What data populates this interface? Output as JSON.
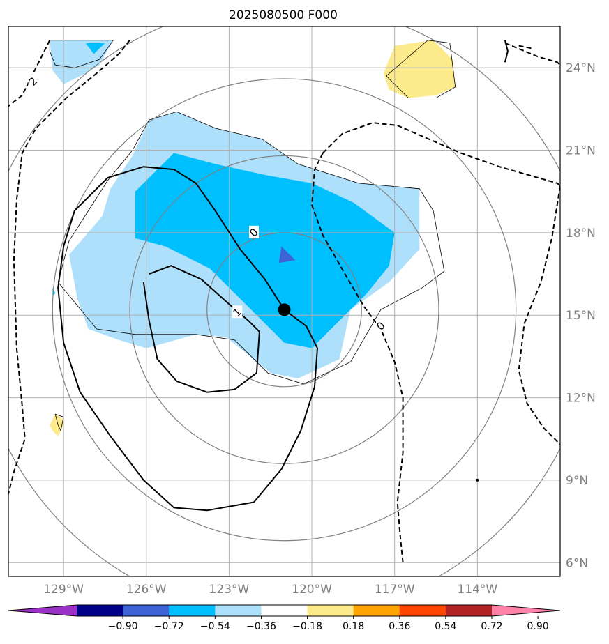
{
  "chart_data": {
    "type": "contour",
    "title": "2025080500 F000",
    "xlabel": "",
    "ylabel": "",
    "xlim": [
      -131,
      -111
    ],
    "ylim": [
      5.5,
      25.5
    ],
    "grid": true,
    "x_ticks": [
      {
        "value": -129,
        "label": "129°W"
      },
      {
        "value": -126,
        "label": "126°W"
      },
      {
        "value": -123,
        "label": "123°W"
      },
      {
        "value": -120,
        "label": "120°W"
      },
      {
        "value": -117,
        "label": "117°W"
      },
      {
        "value": -114,
        "label": "114°W"
      }
    ],
    "y_ticks": [
      {
        "value": 6,
        "label": "6°N"
      },
      {
        "value": 9,
        "label": "9°N"
      },
      {
        "value": 12,
        "label": "12°N"
      },
      {
        "value": 15,
        "label": "15°N"
      },
      {
        "value": 18,
        "label": "18°N"
      },
      {
        "value": 21,
        "label": "21°N"
      },
      {
        "value": 24,
        "label": "24°N"
      }
    ],
    "center": {
      "lon": -121.0,
      "lat": 15.2
    },
    "range_rings_deg": [
      2.8,
      5.6,
      8.4,
      11.2
    ],
    "fill_regions": [
      {
        "level": -0.27,
        "color": "#aee0fb",
        "points": [
          [
            -125.9,
            22.1
          ],
          [
            -124.9,
            22.4
          ],
          [
            -123.5,
            21.8
          ],
          [
            -121.8,
            21.4
          ],
          [
            -120.5,
            20.5
          ],
          [
            -118.3,
            19.8
          ],
          [
            -116.1,
            19.6
          ],
          [
            -116.1,
            17.4
          ],
          [
            -117.2,
            16.2
          ],
          [
            -118.6,
            15.2
          ],
          [
            -119.0,
            13.4
          ],
          [
            -120.5,
            12.7
          ],
          [
            -121.5,
            12.9
          ],
          [
            -122.6,
            13.8
          ],
          [
            -123.1,
            14.2
          ],
          [
            -124.2,
            14.3
          ],
          [
            -126.0,
            13.8
          ],
          [
            -127.0,
            14.1
          ],
          [
            -128.1,
            14.5
          ],
          [
            -128.5,
            15.6
          ],
          [
            -128.8,
            17.2
          ],
          [
            -127.6,
            18.6
          ],
          [
            -127.3,
            19.6
          ],
          [
            -126.5,
            20.8
          ]
        ]
      },
      {
        "level": -0.27,
        "color": "#aee0fb",
        "points": [
          [
            -129.5,
            25.0
          ],
          [
            -127.2,
            25.0
          ],
          [
            -127.7,
            24.1
          ],
          [
            -128.2,
            23.8
          ],
          [
            -129.0,
            23.4
          ],
          [
            -129.4,
            23.9
          ]
        ]
      },
      {
        "level": -0.45,
        "color": "#00bfff",
        "points": [
          [
            -125.0,
            20.9
          ],
          [
            -123.5,
            20.5
          ],
          [
            -121.7,
            20.1
          ],
          [
            -120.0,
            19.8
          ],
          [
            -118.5,
            19.1
          ],
          [
            -117.0,
            18.0
          ],
          [
            -117.2,
            16.8
          ],
          [
            -118.0,
            15.8
          ],
          [
            -118.6,
            15.2
          ],
          [
            -119.5,
            14.3
          ],
          [
            -120.0,
            13.8
          ],
          [
            -121.0,
            14.0
          ],
          [
            -122.4,
            15.4
          ],
          [
            -123.7,
            16.7
          ],
          [
            -125.3,
            17.5
          ],
          [
            -126.4,
            17.8
          ],
          [
            -126.4,
            19.5
          ]
        ]
      },
      {
        "level": -0.45,
        "color": "#00bfff",
        "points": [
          [
            -128.2,
            24.9
          ],
          [
            -127.5,
            24.9
          ],
          [
            -127.9,
            24.5
          ]
        ]
      },
      {
        "level": -0.63,
        "color": "#3e63d4",
        "points": [
          [
            -121.1,
            17.5
          ],
          [
            -120.6,
            17.0
          ],
          [
            -121.2,
            16.9
          ]
        ]
      },
      {
        "level": -0.45,
        "color": "#00bfff",
        "points": [
          [
            -129.4,
            16.0
          ],
          [
            -129.3,
            15.8
          ],
          [
            -129.4,
            15.7
          ]
        ]
      },
      {
        "level": 0.27,
        "color": "#fdea8a",
        "points": [
          [
            -115.6,
            25.0
          ],
          [
            -117.0,
            24.8
          ],
          [
            -117.4,
            23.8
          ],
          [
            -117.2,
            23.2
          ],
          [
            -116.5,
            22.9
          ],
          [
            -115.5,
            23.0
          ],
          [
            -114.8,
            23.3
          ],
          [
            -114.9,
            24.3
          ]
        ]
      },
      {
        "level": 0.27,
        "color": "#fdea8a",
        "points": [
          [
            -129.3,
            11.4
          ],
          [
            -129.0,
            11.2
          ],
          [
            -129.0,
            11.0
          ],
          [
            -129.2,
            10.6
          ],
          [
            -129.4,
            10.8
          ],
          [
            -129.5,
            11.0
          ]
        ]
      }
    ],
    "thin_outlines": [
      [
        [
          -125.9,
          22.1
        ],
        [
          -124.9,
          22.4
        ],
        [
          -123.5,
          21.8
        ],
        [
          -121.8,
          21.4
        ],
        [
          -120.5,
          20.5
        ],
        [
          -118.3,
          19.8
        ],
        [
          -116.1,
          19.6
        ],
        [
          -115.6,
          18.8
        ],
        [
          -115.2,
          16.6
        ],
        [
          -116.0,
          16.0
        ],
        [
          -117.5,
          15.2
        ],
        [
          -118.6,
          13.3
        ],
        [
          -120.3,
          12.5
        ],
        [
          -121.6,
          12.9
        ],
        [
          -122.8,
          14.1
        ],
        [
          -124.2,
          14.3
        ],
        [
          -126.4,
          14.3
        ],
        [
          -127.8,
          14.5
        ],
        [
          -129.2,
          16.2
        ],
        [
          -128.8,
          17.7
        ],
        [
          -127.4,
          19.9
        ],
        [
          -126.5,
          21.0
        ]
      ],
      [
        [
          -129.5,
          25.0
        ],
        [
          -127.2,
          25.0
        ],
        [
          -127.7,
          24.3
        ],
        [
          -128.6,
          24.0
        ],
        [
          -129.3,
          24.1
        ],
        [
          -129.5,
          24.6
        ]
      ],
      [
        [
          -115.8,
          25.0
        ],
        [
          -115.0,
          24.9
        ],
        [
          -114.8,
          23.3
        ],
        [
          -115.5,
          22.9
        ],
        [
          -116.5,
          22.9
        ],
        [
          -117.3,
          23.7
        ]
      ],
      [
        [
          -129.3,
          11.4
        ],
        [
          -129.0,
          11.3
        ],
        [
          -129.1,
          10.8
        ],
        [
          -129.2,
          11.0
        ]
      ]
    ],
    "solid_contours": [
      {
        "label": "0",
        "label_at": [
          -122.1,
          18.0
        ],
        "points": [
          [
            -121.0,
            15.2
          ],
          [
            -121.7,
            16.3
          ],
          [
            -122.6,
            17.4
          ],
          [
            -123.5,
            18.8
          ],
          [
            -124.2,
            19.8
          ],
          [
            -125.0,
            20.3
          ],
          [
            -126.1,
            20.4
          ],
          [
            -127.4,
            20.0
          ],
          [
            -128.6,
            18.8
          ],
          [
            -129.0,
            17.5
          ],
          [
            -129.2,
            16.0
          ],
          [
            -129.0,
            14.0
          ],
          [
            -128.4,
            12.2
          ],
          [
            -127.3,
            10.6
          ],
          [
            -126.1,
            9.0
          ],
          [
            -125.0,
            8.0
          ],
          [
            -123.8,
            7.9
          ],
          [
            -122.1,
            8.2
          ],
          [
            -121.1,
            9.4
          ],
          [
            -120.4,
            10.8
          ],
          [
            -119.9,
            12.4
          ],
          [
            -119.8,
            13.8
          ],
          [
            -120.2,
            14.6
          ],
          [
            -121.0,
            15.2
          ]
        ]
      },
      {
        "label": "1",
        "label_at": [
          -122.7,
          15.1
        ],
        "points": [
          [
            -125.9,
            16.5
          ],
          [
            -125.1,
            16.8
          ],
          [
            -124.0,
            16.3
          ],
          [
            -123.0,
            15.4
          ],
          [
            -122.3,
            14.8
          ],
          [
            -121.9,
            14.4
          ],
          [
            -122.0,
            12.9
          ],
          [
            -122.8,
            12.3
          ],
          [
            -123.8,
            12.2
          ],
          [
            -124.9,
            12.6
          ],
          [
            -125.6,
            13.4
          ],
          [
            -125.9,
            14.8
          ],
          [
            -126.1,
            16.2
          ]
        ]
      },
      {
        "label": "",
        "points": [
          [
            -113.0,
            25.0
          ],
          [
            -112.9,
            24.6
          ],
          [
            -113.0,
            24.2
          ]
        ]
      }
    ],
    "dashed_contours": [
      {
        "label": "0",
        "label_at": [
          -117.5,
          14.6
        ],
        "points": [
          [
            -119.6,
            20.9
          ],
          [
            -119.9,
            20.3
          ],
          [
            -120.0,
            19.0
          ],
          [
            -119.6,
            17.9
          ],
          [
            -118.8,
            16.5
          ],
          [
            -118.1,
            15.3
          ],
          [
            -117.5,
            14.5
          ],
          [
            -117.0,
            13.3
          ],
          [
            -116.7,
            12.0
          ],
          [
            -116.7,
            10.0
          ],
          [
            -116.9,
            8.2
          ],
          [
            -116.8,
            7.0
          ],
          [
            -116.7,
            6.0
          ]
        ]
      },
      {
        "label": "",
        "points": [
          [
            -119.6,
            20.9
          ],
          [
            -118.9,
            21.6
          ],
          [
            -117.8,
            22.0
          ],
          [
            -116.9,
            21.9
          ],
          [
            -114.6,
            20.9
          ],
          [
            -113.2,
            20.4
          ],
          [
            -111.8,
            20.0
          ],
          [
            -111.1,
            19.8
          ],
          [
            -111.0,
            19.7
          ]
        ]
      },
      {
        "label": "",
        "points": [
          [
            -111.0,
            19.7
          ],
          [
            -111.3,
            17.8
          ],
          [
            -111.7,
            16.2
          ],
          [
            -112.3,
            14.7
          ],
          [
            -112.5,
            13.0
          ],
          [
            -112.2,
            11.8
          ],
          [
            -111.6,
            10.9
          ],
          [
            -111.0,
            10.3
          ]
        ]
      },
      {
        "label": "2",
        "label_at": [
          -130.1,
          23.5
        ],
        "points": [
          [
            -129.5,
            25.0
          ],
          [
            -130.0,
            24.0
          ],
          [
            -130.5,
            23.0
          ],
          [
            -131.0,
            22.6
          ]
        ]
      },
      {
        "label": "",
        "points": [
          [
            -126.6,
            25.0
          ],
          [
            -127.0,
            24.5
          ],
          [
            -127.8,
            23.8
          ],
          [
            -128.9,
            22.9
          ],
          [
            -130.0,
            21.8
          ],
          [
            -130.5,
            20.9
          ],
          [
            -130.7,
            19.2
          ],
          [
            -130.8,
            17.0
          ],
          [
            -130.7,
            13.8
          ],
          [
            -130.5,
            11.7
          ],
          [
            -130.4,
            10.5
          ],
          [
            -130.8,
            9.3
          ],
          [
            -131.0,
            8.5
          ]
        ]
      },
      {
        "label": "",
        "points": [
          [
            -113.0,
            24.9
          ],
          [
            -111.8,
            24.4
          ],
          [
            -111.1,
            24.2
          ],
          [
            -111.0,
            24.1
          ]
        ]
      },
      {
        "label": "",
        "points": [
          [
            -112.5,
            24.8
          ],
          [
            -112.0,
            24.7
          ]
        ]
      }
    ],
    "marker_small": {
      "lon": -114.0,
      "lat": 9.0
    },
    "colorbar": {
      "colors": [
        "#9b32c8",
        "#00008b",
        "#3e63d4",
        "#00bfff",
        "#aee0fb",
        "#ffffff",
        "#fdea8a",
        "#ffa500",
        "#ff4500",
        "#b22222",
        "#ff82ab"
      ],
      "boundaries": [
        -0.9,
        -0.72,
        -0.54,
        -0.36,
        -0.18,
        0.18,
        0.36,
        0.54,
        0.72,
        0.9
      ],
      "labels": [
        "−0.90",
        "−0.72",
        "−0.54",
        "−0.36",
        "−0.18",
        "0.18",
        "0.36",
        "0.54",
        "0.72",
        "0.90"
      ],
      "extend": "both"
    }
  }
}
